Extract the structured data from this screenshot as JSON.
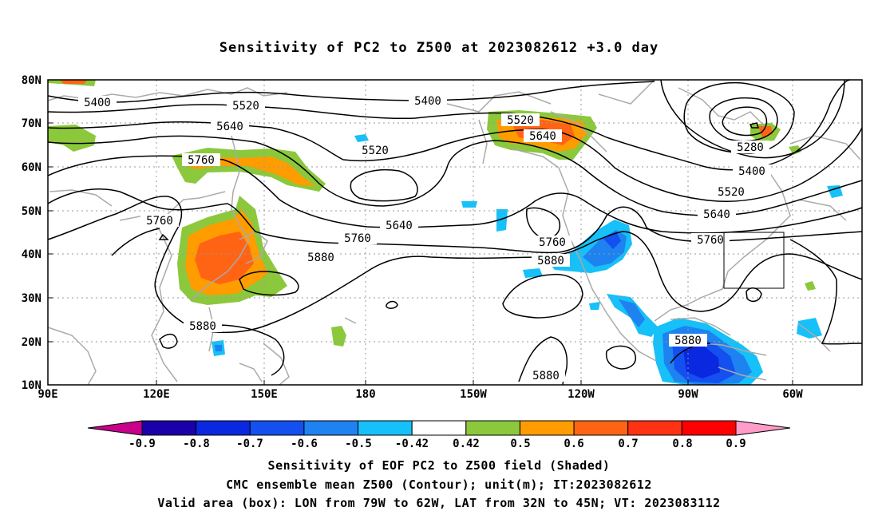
{
  "title": "Sensitivity of PC2 to Z500 at 2023082612 +3.0 day",
  "lat_labels": [
    "80N",
    "70N",
    "60N",
    "50N",
    "40N",
    "30N",
    "20N",
    "10N"
  ],
  "lon_labels": [
    "90E",
    "120E",
    "150E",
    "180",
    "150W",
    "120W",
    "90W",
    "60W"
  ],
  "contour_labels": {
    "c5400a": "5400",
    "c5400b": "5400",
    "c5400c": "5400",
    "c5520a": "5520",
    "c5520b": "5520",
    "c5520c": "5520",
    "c5520d": "5520",
    "c5640a": "5640",
    "c5640b": "5640",
    "c5640c": "5640",
    "c5640d": "5640",
    "c5760a": "5760",
    "c5760b": "5760",
    "c5760c": "5760",
    "c5760d": "5760",
    "c5760e": "5760",
    "c5880a": "5880",
    "c5880b": "5880",
    "c5880c": "5880",
    "c5880d": "5880",
    "c5880e": "5880",
    "c5280a": "5280"
  },
  "colorbar": {
    "labels": [
      "-0.9",
      "-0.8",
      "-0.7",
      "-0.6",
      "-0.5",
      "-0.42",
      "0.42",
      "0.5",
      "0.6",
      "0.7",
      "0.8",
      "0.9"
    ],
    "colors": [
      "#1a00a8",
      "#0a28e0",
      "#1450f0",
      "#1e82f0",
      "#16c0f8",
      "#ffffff",
      "#8cc83c",
      "#ff9c00",
      "#ff6414",
      "#ff3214",
      "#ff0000"
    ],
    "low_color": "#c8008c",
    "high_color": "#ff9cc8"
  },
  "captions": {
    "line1": "Sensitivity of EOF PC2 to Z500 field (Shaded)",
    "line2": "CMC ensemble mean Z500 (Contour); unit(m); IT:2023082612",
    "line3": "Valid area (box): LON from 79W to 62W, LAT from 32N to 45N; VT: 2023083112"
  }
}
